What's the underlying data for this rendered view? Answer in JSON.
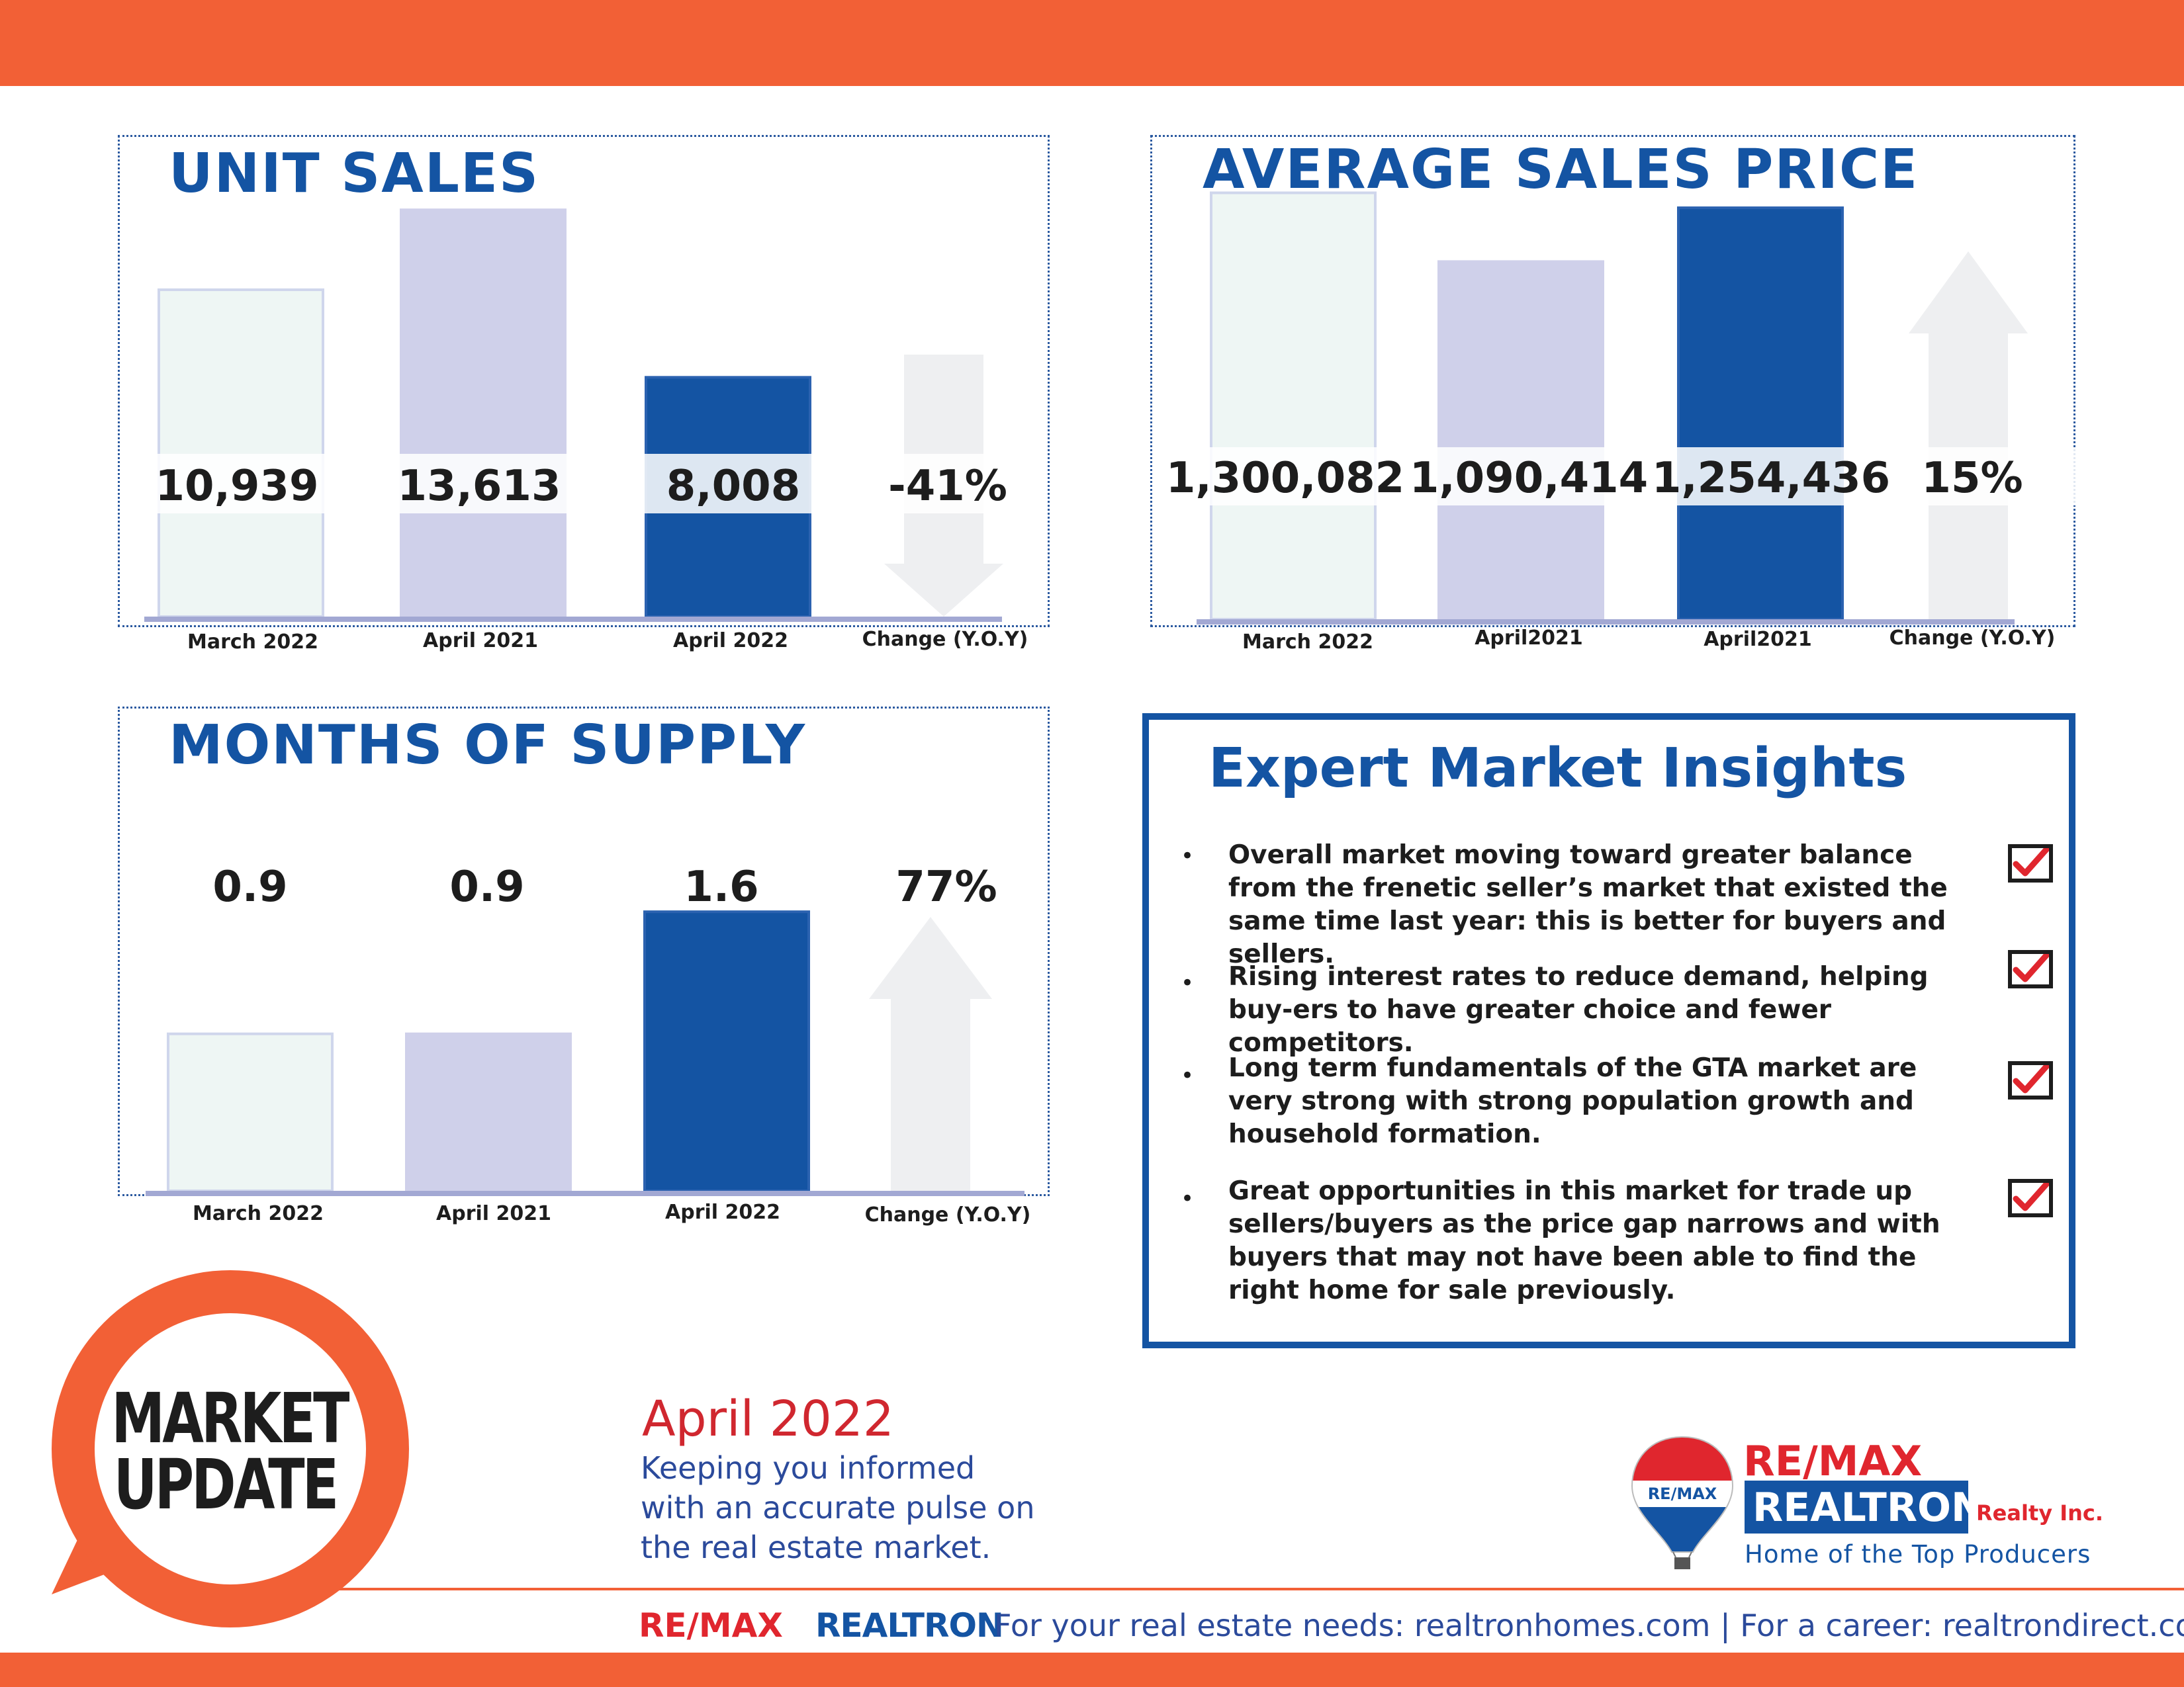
{
  "colors": {
    "orange": "#f26036",
    "navy_title": "#1454a3",
    "bar_light": "#eef6f4",
    "bar_lavender": "#cfd0ea",
    "bar_navy": "#1454a3",
    "arrow_gray": "#eeeff1",
    "baseline": "#a2a8d3",
    "check_red": "#e0262e",
    "tagline_red": "#d0272f",
    "tagline_blue": "#2b4a9b"
  },
  "panels": {
    "unit_sales": {
      "title": "UNIT SALES"
    },
    "avg_price": {
      "title": "AVERAGE SALES PRICE"
    },
    "supply": {
      "title": "MONTHS OF SUPPLY"
    }
  },
  "chart_data": [
    {
      "type": "bar",
      "title": "UNIT SALES",
      "categories": [
        "March 2022",
        "April 2021",
        "April 2022"
      ],
      "values": [
        10939,
        13613,
        8008
      ],
      "value_labels": [
        "10,939",
        "13,613",
        "8,008"
      ],
      "change": {
        "label": "Change (Y.O.Y)",
        "value": -41,
        "text": "-41%",
        "direction": "down"
      },
      "ylim": [
        0,
        15500
      ]
    },
    {
      "type": "bar",
      "title": "AVERAGE SALES PRICE",
      "categories": [
        "March 2022",
        "April2021",
        "April2021"
      ],
      "values": [
        1300082,
        1090414,
        1254436
      ],
      "value_labels": [
        "1,300,082",
        "1,090,414",
        "1,254,436"
      ],
      "change": {
        "label": "Change (Y.O.Y)",
        "value": 15,
        "text": "15%",
        "direction": "up"
      },
      "ylim": [
        0,
        1420000
      ]
    },
    {
      "type": "bar",
      "title": "MONTHS OF SUPPLY",
      "categories": [
        "March 2022",
        "April 2021",
        "April 2022"
      ],
      "values": [
        0.9,
        0.9,
        1.6
      ],
      "value_labels": [
        "0.9",
        "0.9",
        "1.6"
      ],
      "change": {
        "label": "Change (Y.O.Y)",
        "value": 77,
        "text": "77%",
        "direction": "up"
      },
      "ylim": [
        0,
        2.2
      ]
    }
  ],
  "insights": {
    "title": "Expert Market Insights",
    "bullet_char": "•",
    "items": [
      "Overall market moving toward greater balance from the frenetic seller’s market that existed the same time last year: this is better for buyers and sellers.",
      "Rising interest rates to reduce demand, helping buy-ers to have greater choice and fewer competitors.",
      "Long term fundamentals of the GTA market are very strong with strong population growth and household formation.",
      "Great opportunities in this market for trade up sellers/buyers as the price gap narrows and with buyers that may not have been able to find the right home for sale previously."
    ]
  },
  "market_update": {
    "line1": "MARKET",
    "line2": "UPDATE"
  },
  "tagline": {
    "date": "April 2022",
    "lines": [
      "Keeping you informed",
      "with an accurate pulse on",
      "the real estate market."
    ]
  },
  "logo": {
    "balloon_text": "RE/MAX",
    "remax": "RE/MAX",
    "realtron": "REALTRON",
    "realty": "Realty Inc.",
    "tagline": "Home of the Top Producers"
  },
  "footer": {
    "remax": "RE/MAX",
    "realtron": "REALTRON",
    "text": "For your real estate needs: realtronhomes.com  |  For a career: realtrondirect.com"
  }
}
